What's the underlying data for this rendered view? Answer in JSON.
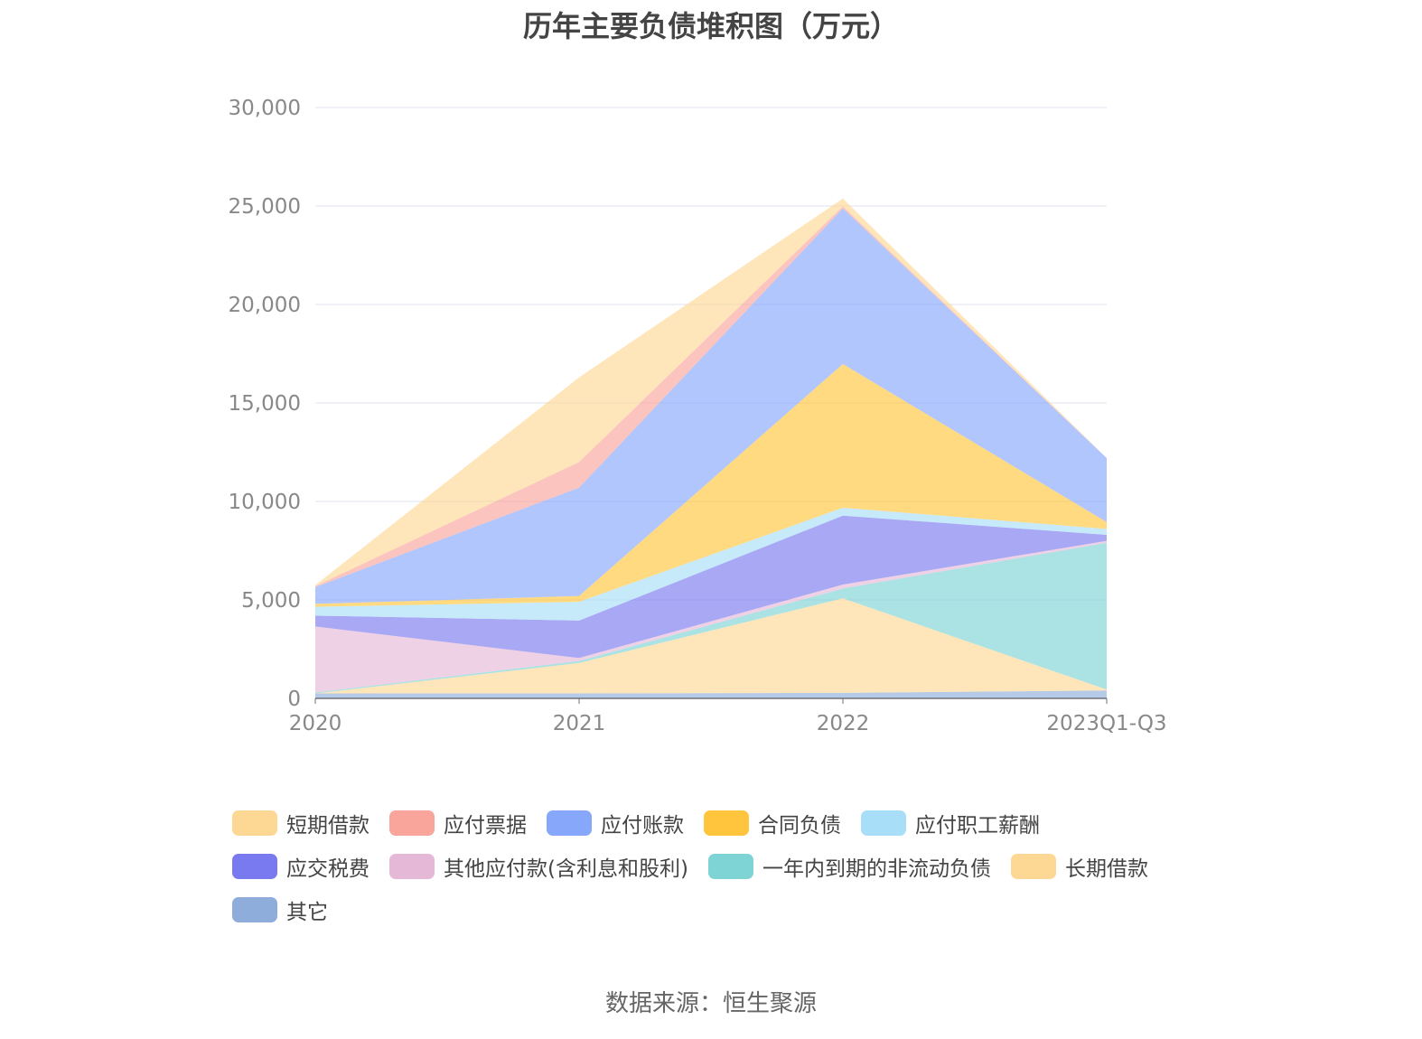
{
  "chart_data": {
    "type": "area",
    "stacked": true,
    "title": "历年主要负债堆积图（万元）",
    "categories": [
      "2020",
      "2021",
      "2022",
      "2023Q1-Q3"
    ],
    "ylim": [
      0,
      30000
    ],
    "yticks": [
      "0",
      "5,000",
      "10,000",
      "15,000",
      "20,000",
      "25,000",
      "30,000"
    ],
    "ytick_values": [
      0,
      5000,
      10000,
      15000,
      20000,
      25000,
      30000
    ],
    "grid": true,
    "legend_position": "bottom",
    "series": [
      {
        "name": "短期借款",
        "color": "#FDD895",
        "values": [
          50,
          4300,
          400,
          0
        ]
      },
      {
        "name": "应付票据",
        "color": "#F9A59B",
        "values": [
          50,
          1300,
          100,
          0
        ]
      },
      {
        "name": "应付账款",
        "color": "#87A7FA",
        "values": [
          850,
          5500,
          7900,
          3250
        ]
      },
      {
        "name": "合同负债",
        "color": "#FFC63D",
        "values": [
          150,
          300,
          7300,
          350
        ]
      },
      {
        "name": "应付职工薪酬",
        "color": "#A8DEF8",
        "values": [
          450,
          950,
          400,
          300
        ]
      },
      {
        "name": "应交税费",
        "color": "#7A7AF0",
        "values": [
          550,
          1900,
          3500,
          300
        ]
      },
      {
        "name": "其他应付款(含利息和股利)",
        "color": "#E6B8D8",
        "values": [
          3350,
          150,
          200,
          100
        ]
      },
      {
        "name": "一年内到期的非流动负债",
        "color": "#7ED3D5",
        "values": [
          50,
          100,
          500,
          7450
        ]
      },
      {
        "name": "长期借款",
        "color": "#FDD895",
        "values": [
          0,
          1550,
          4800,
          50
        ]
      },
      {
        "name": "其它",
        "color": "#8EADDA",
        "values": [
          250,
          250,
          280,
          400
        ]
      }
    ]
  },
  "source": "数据来源：恒生聚源"
}
